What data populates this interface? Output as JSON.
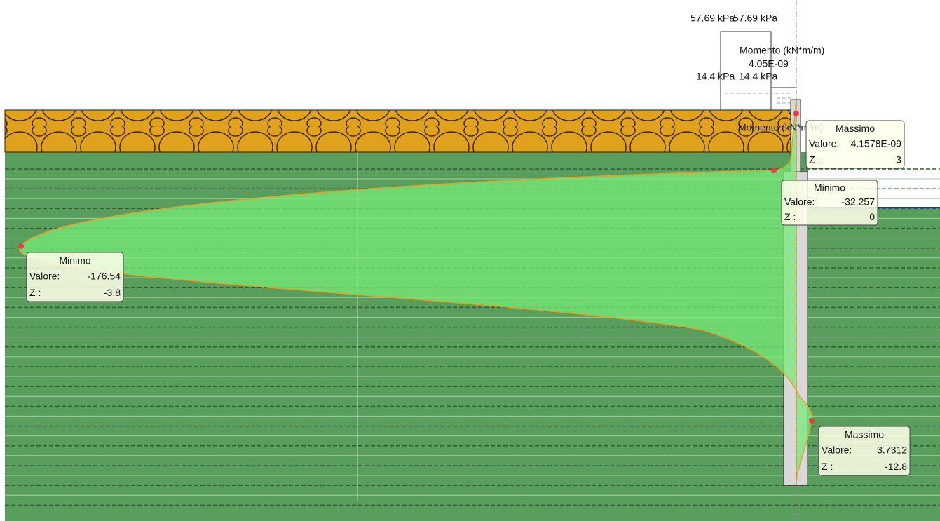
{
  "pressure_labels": [
    "57.69 kPa",
    "57.69 kPa",
    "14.4 kPa",
    "14.4 kPa"
  ],
  "moment_labels": [
    "Momento (kN*m/m)",
    "Momento (kN*m/m)"
  ],
  "top_value": "4.05E-09",
  "callouts": [
    {
      "title": "Massimo",
      "value_label": "Valore:",
      "value": "4.1578E-09",
      "z_label": "Z :",
      "z": "3"
    },
    {
      "title": "Minimo",
      "value_label": "Valore:",
      "value": "-32.257",
      "z_label": "Z :",
      "z": "0"
    },
    {
      "title": "Minimo",
      "value_label": "Valore:",
      "value": "-176.54",
      "z_label": "Z :",
      "z": "-3.8"
    },
    {
      "title": "Massimo",
      "value_label": "Valore:",
      "value": "3.7312",
      "z_label": "Z :",
      "z": "-12.8"
    }
  ]
}
